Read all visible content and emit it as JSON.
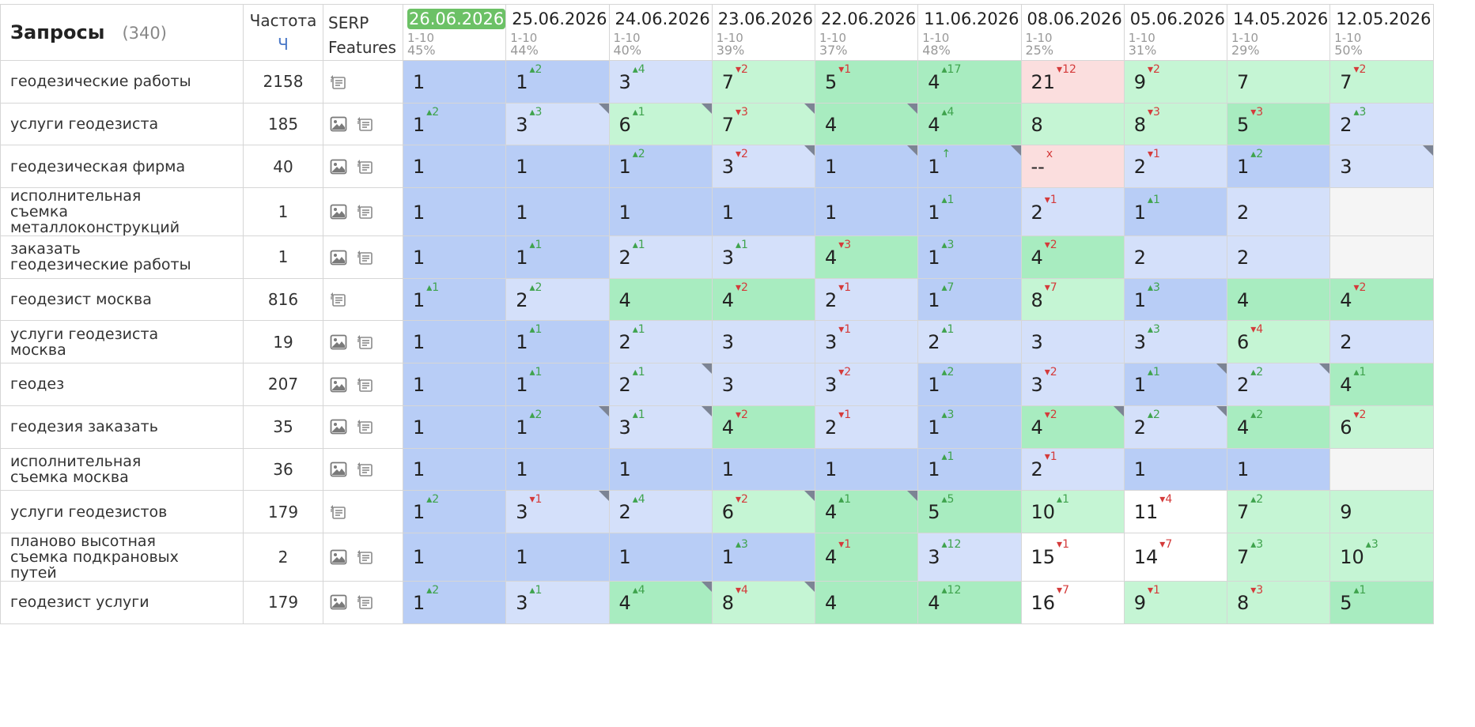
{
  "header": {
    "queries_title": "Запросы",
    "queries_count": "(340)",
    "frequency_title": "Частота",
    "frequency_unit": "Ч",
    "serp_line1": "SERP",
    "serp_line2": "Features"
  },
  "dates": [
    {
      "date": "26.06.2026",
      "range": "1-10",
      "pct": "45%"
    },
    {
      "date": "25.06.2026",
      "range": "1-10",
      "pct": "44%"
    },
    {
      "date": "24.06.2026",
      "range": "1-10",
      "pct": "40%"
    },
    {
      "date": "23.06.2026",
      "range": "1-10",
      "pct": "39%"
    },
    {
      "date": "22.06.2026",
      "range": "1-10",
      "pct": "37%"
    },
    {
      "date": "11.06.2026",
      "range": "1-10",
      "pct": "48%"
    },
    {
      "date": "08.06.2026",
      "range": "1-10",
      "pct": "25%"
    },
    {
      "date": "05.06.2026",
      "range": "1-10",
      "pct": "31%"
    },
    {
      "date": "14.05.2026",
      "range": "1-10",
      "pct": "29%"
    },
    {
      "date": "12.05.2026",
      "range": "1-10",
      "pct": "50%"
    }
  ],
  "colors": {
    "top1": "#b8cdf6",
    "top3": "#d4e0fa",
    "top5": "#a8ecc0",
    "top10": "#c5f5d4",
    "top20": "#fbdede",
    "other": "#ffffff",
    "empty": "#f5f5f5",
    "up": "#3fa34d",
    "down": "#d43a3a",
    "current_date_bg": "#6cc166"
  },
  "rows": [
    {
      "query": "геодезические работы",
      "freq": "2158",
      "serp": [
        "snippet-icon"
      ],
      "cells": [
        [
          "1",
          ""
        ],
        [
          "1",
          "▴2"
        ],
        [
          "3",
          "▴4"
        ],
        [
          "7",
          "▾2"
        ],
        [
          "5",
          "▾1"
        ],
        [
          "4",
          "▴17"
        ],
        [
          "21",
          "▾12"
        ],
        [
          "9",
          "▾2"
        ],
        [
          "7",
          ""
        ],
        [
          "7",
          "▾2"
        ]
      ]
    },
    {
      "query": "услуги геодезиста",
      "freq": "185",
      "serp": [
        "image-icon",
        "snippet-icon"
      ],
      "cells": [
        [
          "1",
          "▴2"
        ],
        [
          "3",
          "▴3"
        ],
        [
          "6",
          "▴1"
        ],
        [
          "7",
          "▾3"
        ],
        [
          "4",
          ""
        ],
        [
          "4",
          "▴4"
        ],
        [
          "8",
          ""
        ],
        [
          "8",
          "▾3"
        ],
        [
          "5",
          "▾3"
        ],
        [
          "2",
          "▴3"
        ]
      ]
    },
    {
      "query": "геодезическая фирма",
      "freq": "40",
      "serp": [
        "image-icon",
        "snippet-icon"
      ],
      "cells": [
        [
          "1",
          ""
        ],
        [
          "1",
          ""
        ],
        [
          "1",
          "▴2"
        ],
        [
          "3",
          "▾2"
        ],
        [
          "1",
          ""
        ],
        [
          "1",
          "↑"
        ],
        [
          "--",
          "x"
        ],
        [
          "2",
          "▾1"
        ],
        [
          "1",
          "▴2"
        ],
        [
          "3",
          ""
        ]
      ]
    },
    {
      "query": "исполнительная съемка металлоконструкций",
      "freq": "1",
      "serp": [
        "image-icon",
        "snippet-icon"
      ],
      "cells": [
        [
          "1",
          ""
        ],
        [
          "1",
          ""
        ],
        [
          "1",
          ""
        ],
        [
          "1",
          ""
        ],
        [
          "1",
          ""
        ],
        [
          "1",
          "▴1"
        ],
        [
          "2",
          "▾1"
        ],
        [
          "1",
          "▴1"
        ],
        [
          "2",
          ""
        ],
        [
          "",
          ""
        ]
      ]
    },
    {
      "query": "заказать геодезические работы",
      "freq": "1",
      "serp": [
        "image-icon",
        "snippet-icon"
      ],
      "cells": [
        [
          "1",
          ""
        ],
        [
          "1",
          "▴1"
        ],
        [
          "2",
          "▴1"
        ],
        [
          "3",
          "▴1"
        ],
        [
          "4",
          "▾3"
        ],
        [
          "1",
          "▴3"
        ],
        [
          "4",
          "▾2"
        ],
        [
          "2",
          ""
        ],
        [
          "2",
          ""
        ],
        [
          "",
          ""
        ]
      ]
    },
    {
      "query": "геодезист москва",
      "freq": "816",
      "serp": [
        "snippet-icon"
      ],
      "cells": [
        [
          "1",
          "▴1"
        ],
        [
          "2",
          "▴2"
        ],
        [
          "4",
          ""
        ],
        [
          "4",
          "▾2"
        ],
        [
          "2",
          "▾1"
        ],
        [
          "1",
          "▴7"
        ],
        [
          "8",
          "▾7"
        ],
        [
          "1",
          "▴3"
        ],
        [
          "4",
          ""
        ],
        [
          "4",
          "▾2"
        ]
      ]
    },
    {
      "query": "услуги геодезиста москва",
      "freq": "19",
      "serp": [
        "image-icon",
        "snippet-icon"
      ],
      "cells": [
        [
          "1",
          ""
        ],
        [
          "1",
          "▴1"
        ],
        [
          "2",
          "▴1"
        ],
        [
          "3",
          ""
        ],
        [
          "3",
          "▾1"
        ],
        [
          "2",
          "▴1"
        ],
        [
          "3",
          ""
        ],
        [
          "3",
          "▴3"
        ],
        [
          "6",
          "▾4"
        ],
        [
          "2",
          ""
        ]
      ]
    },
    {
      "query": "геодез",
      "freq": "207",
      "serp": [
        "image-icon",
        "snippet-icon"
      ],
      "cells": [
        [
          "1",
          ""
        ],
        [
          "1",
          "▴1"
        ],
        [
          "2",
          "▴1"
        ],
        [
          "3",
          ""
        ],
        [
          "3",
          "▾2"
        ],
        [
          "1",
          "▴2"
        ],
        [
          "3",
          "▾2"
        ],
        [
          "1",
          "▴1"
        ],
        [
          "2",
          "▴2"
        ],
        [
          "4",
          "▴1"
        ]
      ]
    },
    {
      "query": "геодезия заказать",
      "freq": "35",
      "serp": [
        "image-icon",
        "snippet-icon"
      ],
      "cells": [
        [
          "1",
          ""
        ],
        [
          "1",
          "▴2"
        ],
        [
          "3",
          "▴1"
        ],
        [
          "4",
          "▾2"
        ],
        [
          "2",
          "▾1"
        ],
        [
          "1",
          "▴3"
        ],
        [
          "4",
          "▾2"
        ],
        [
          "2",
          "▴2"
        ],
        [
          "4",
          "▴2"
        ],
        [
          "6",
          "▾2"
        ]
      ]
    },
    {
      "query": "исполнительная съемка москва",
      "freq": "36",
      "serp": [
        "image-icon",
        "snippet-icon"
      ],
      "cells": [
        [
          "1",
          ""
        ],
        [
          "1",
          ""
        ],
        [
          "1",
          ""
        ],
        [
          "1",
          ""
        ],
        [
          "1",
          ""
        ],
        [
          "1",
          "▴1"
        ],
        [
          "2",
          "▾1"
        ],
        [
          "1",
          ""
        ],
        [
          "1",
          ""
        ],
        [
          "",
          ""
        ]
      ]
    },
    {
      "query": "услуги геодезистов",
      "freq": "179",
      "serp": [
        "snippet-icon"
      ],
      "cells": [
        [
          "1",
          "▴2"
        ],
        [
          "3",
          "▾1"
        ],
        [
          "2",
          "▴4"
        ],
        [
          "6",
          "▾2"
        ],
        [
          "4",
          "▴1"
        ],
        [
          "5",
          "▴5"
        ],
        [
          "10",
          "▴1"
        ],
        [
          "11",
          "▾4"
        ],
        [
          "7",
          "▴2"
        ],
        [
          "9",
          ""
        ]
      ]
    },
    {
      "query": "планово высотная съемка подкрановых путей",
      "freq": "2",
      "serp": [
        "image-icon",
        "snippet-icon"
      ],
      "cells": [
        [
          "1",
          ""
        ],
        [
          "1",
          ""
        ],
        [
          "1",
          ""
        ],
        [
          "1",
          "▴3"
        ],
        [
          "4",
          "▾1"
        ],
        [
          "3",
          "▴12"
        ],
        [
          "15",
          "▾1"
        ],
        [
          "14",
          "▾7"
        ],
        [
          "7",
          "▴3"
        ],
        [
          "10",
          "▴3"
        ]
      ]
    },
    {
      "query": "геодезист услуги",
      "freq": "179",
      "serp": [
        "image-icon",
        "snippet-icon"
      ],
      "cells": [
        [
          "1",
          "▴2"
        ],
        [
          "3",
          "▴1"
        ],
        [
          "4",
          "▴4"
        ],
        [
          "8",
          "▾4"
        ],
        [
          "4",
          ""
        ],
        [
          "4",
          "▴12"
        ],
        [
          "16",
          "▾7"
        ],
        [
          "9",
          "▾1"
        ],
        [
          "8",
          "▾3"
        ],
        [
          "5",
          "▴1"
        ]
      ]
    }
  ]
}
